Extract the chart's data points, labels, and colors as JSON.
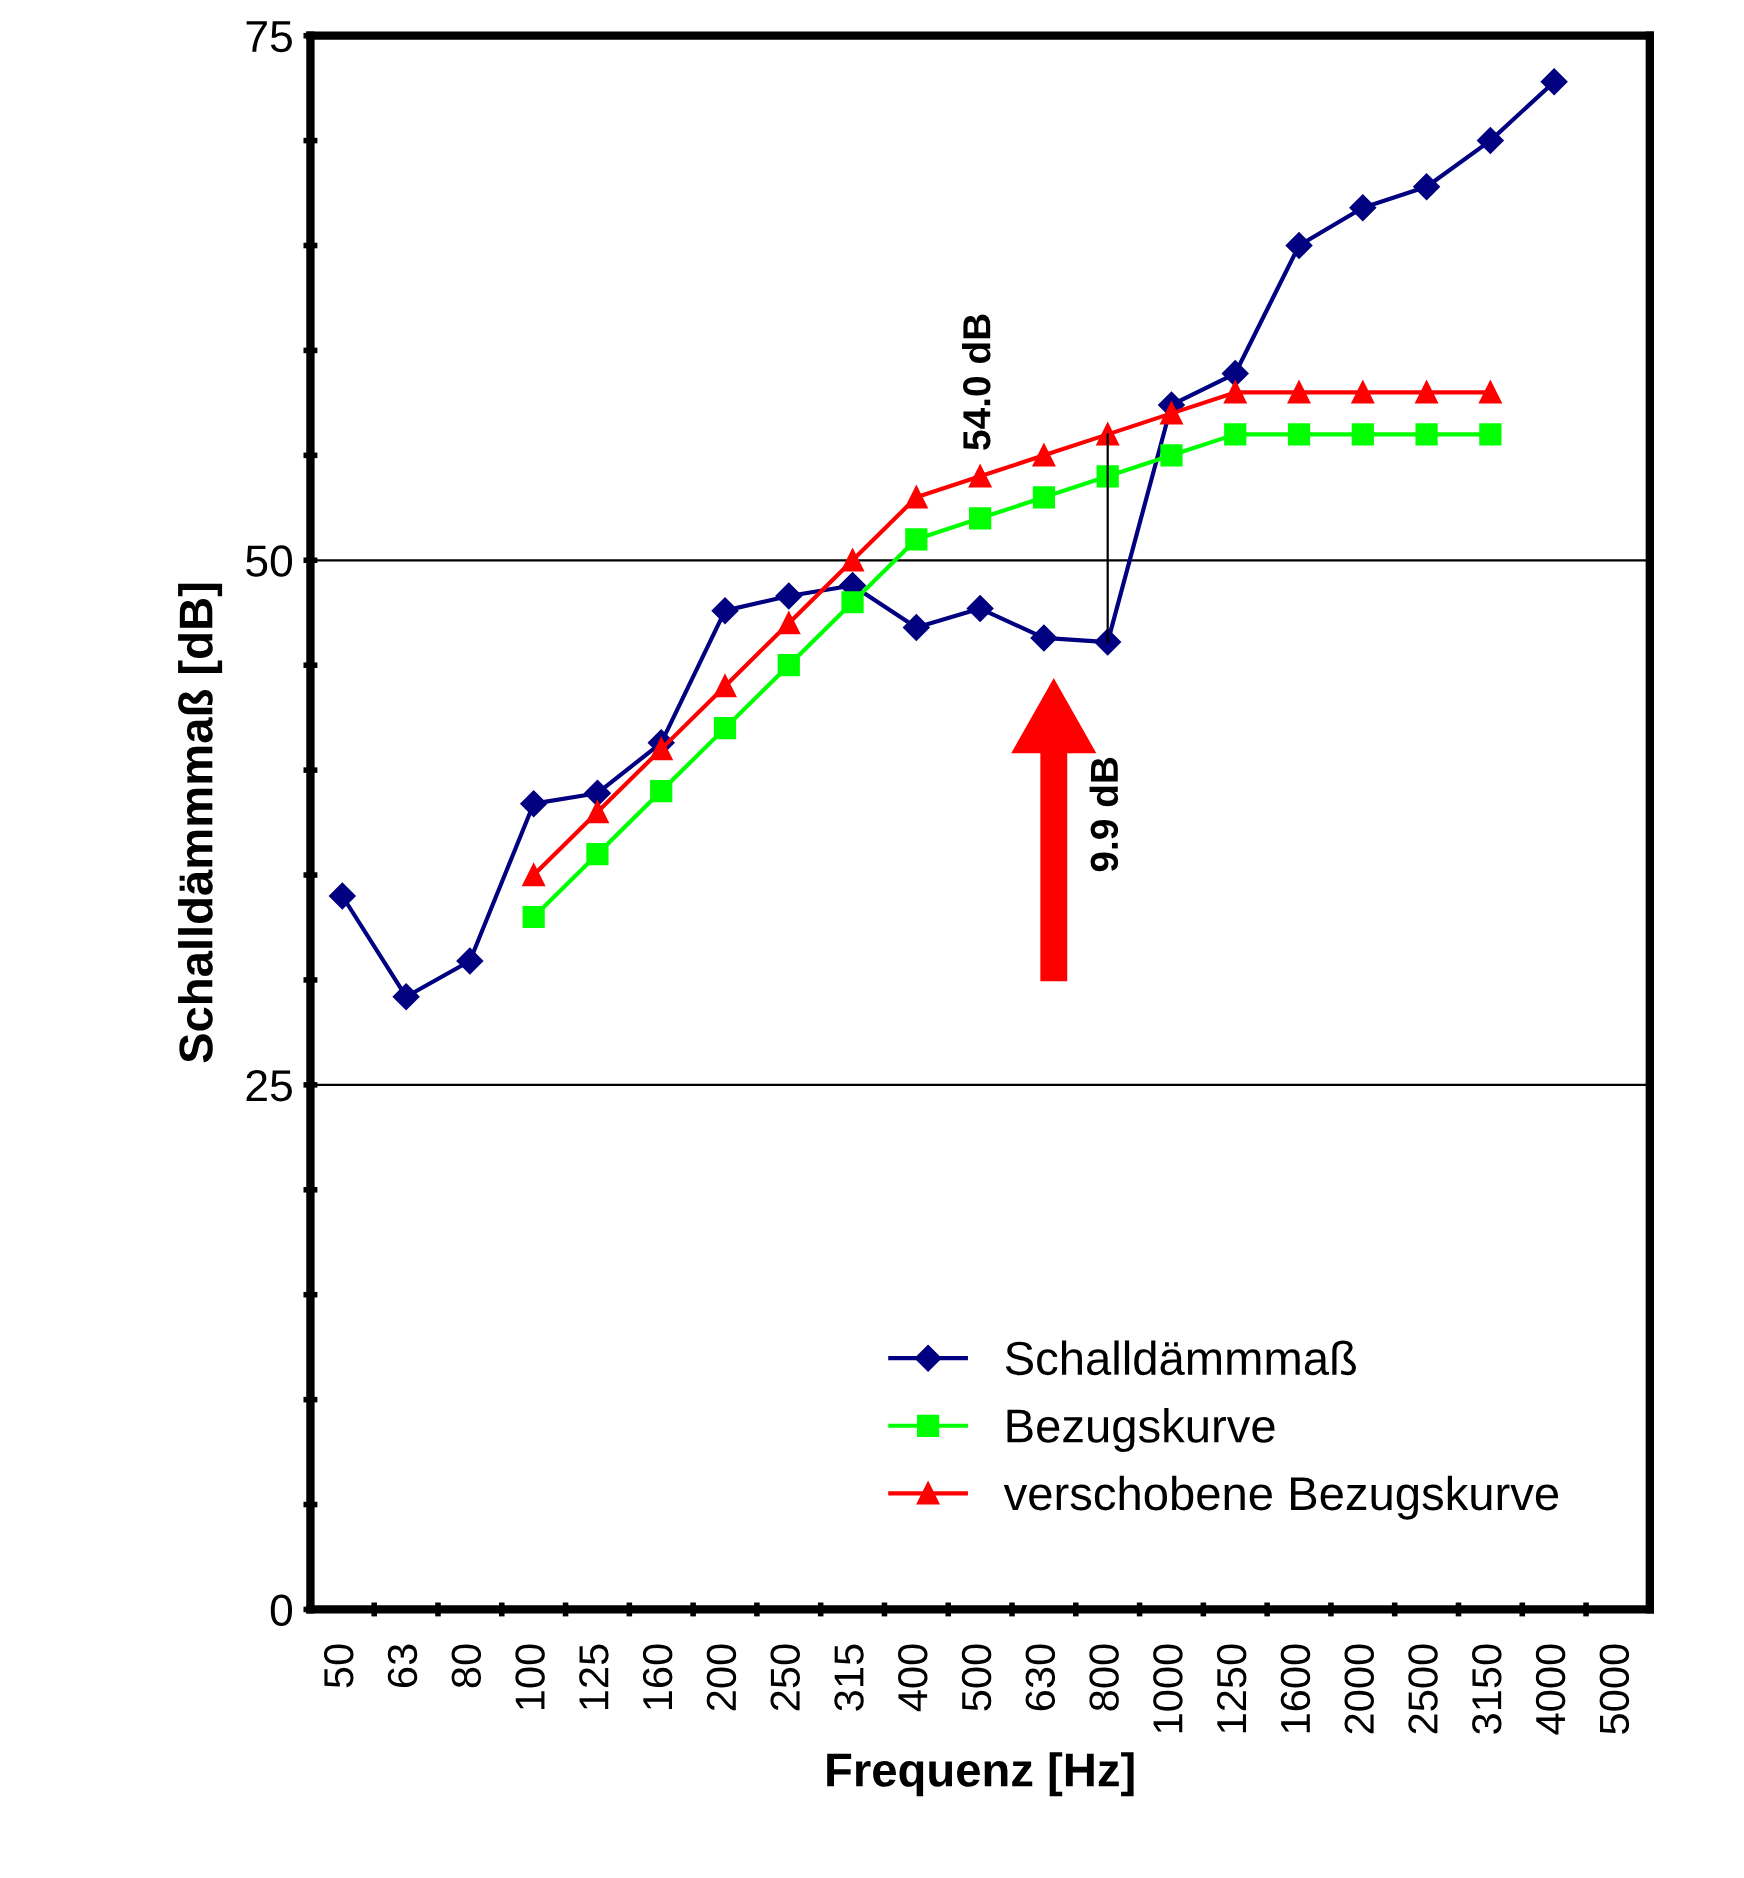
{
  "chart_data": {
    "type": "line",
    "xlabel": "Frequenz [Hz]",
    "ylabel": "Schalldämmmaß [dB]",
    "categories": [
      "50",
      "63",
      "80",
      "100",
      "125",
      "160",
      "200",
      "250",
      "315",
      "400",
      "500",
      "630",
      "800",
      "1000",
      "1250",
      "1600",
      "2000",
      "2500",
      "3150",
      "4000",
      "5000"
    ],
    "series": [
      {
        "name": "Schalldämmmaß",
        "color": "#000080",
        "marker": "diamond",
        "values": [
          34.0,
          29.2,
          30.9,
          38.4,
          38.9,
          41.3,
          47.6,
          48.3,
          48.8,
          46.8,
          47.7,
          46.3,
          46.1,
          57.4,
          58.9,
          65.0,
          66.8,
          67.8,
          70.0,
          72.8,
          null
        ]
      },
      {
        "name": "Bezugskurve",
        "color": "#00ff00",
        "marker": "square",
        "values": [
          null,
          null,
          null,
          33,
          36,
          39,
          42,
          45,
          48,
          51,
          52,
          53,
          54,
          55,
          56,
          56,
          56,
          56,
          56,
          null,
          null
        ]
      },
      {
        "name": "verschobene Bezugskurve",
        "color": "#ff0000",
        "marker": "triangle",
        "values": [
          null,
          null,
          null,
          35,
          38,
          41,
          44,
          47,
          50,
          53,
          54,
          55,
          56,
          57,
          58,
          58,
          58,
          58,
          58,
          null,
          null
        ]
      },
      {
        "color": "#000000",
        "marker": "none",
        "x": [
          "800",
          "800"
        ],
        "values": [
          46.1,
          56
        ]
      }
    ],
    "ylim": [
      0,
      75
    ],
    "yticks": [
      0,
      {
        "value": 5,
        "label": null
      },
      {
        "value": 10,
        "label": null
      },
      {
        "value": 15,
        "label": null
      },
      {
        "value": 20,
        "label": null
      },
      25,
      {
        "value": 30,
        "label": null
      },
      {
        "value": 35,
        "label": null
      },
      {
        "value": 40,
        "label": null
      },
      {
        "value": 45,
        "label": null
      },
      50,
      {
        "value": 55,
        "label": null
      },
      {
        "value": 60,
        "label": null
      },
      {
        "value": 65,
        "label": null
      },
      {
        "value": 70,
        "label": null
      },
      75
    ],
    "grid": "y",
    "legend": "bottom right",
    "annotations": [
      "54.0 dB",
      {
        "text": "9.9 dB",
        "x": "800",
        "y": 46.1
      }
    ]
  }
}
